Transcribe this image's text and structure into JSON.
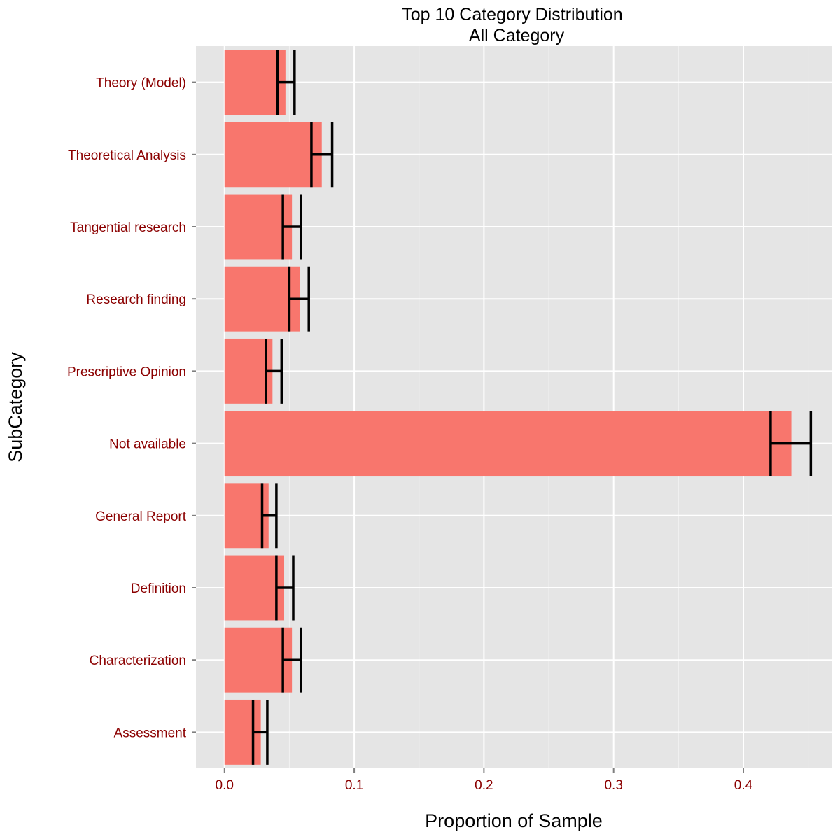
{
  "colors": {
    "panel": "#e5e5e5",
    "grid_major": "#ffffff",
    "grid_minor": "#f2f2f2",
    "bar": "#f8766d",
    "errorbar": "#000000",
    "tick_label": "#8b0000",
    "tick_mark": "#7f7f7f"
  },
  "chart_data": {
    "type": "bar",
    "orientation": "horizontal",
    "title": "Top 10 Category Distribution",
    "subtitle": "All Category",
    "xlabel": "Proportion of Sample",
    "ylabel": "SubCategory",
    "xlim": [
      -0.022,
      0.468
    ],
    "xticks": [
      0.0,
      0.1,
      0.2,
      0.3,
      0.4
    ],
    "xtick_labels": [
      "0.0",
      "0.1",
      "0.2",
      "0.3",
      "0.4"
    ],
    "grid": true,
    "legend": "none",
    "categories": [
      "Theory (Model)",
      "Theoretical Analysis",
      "Tangential research",
      "Research finding",
      "Prescriptive Opinion",
      "Not available",
      "General Report",
      "Definition",
      "Characterization",
      "Assessment"
    ],
    "values": [
      0.047,
      0.075,
      0.052,
      0.058,
      0.037,
      0.437,
      0.034,
      0.046,
      0.052,
      0.028
    ],
    "error_low": [
      0.041,
      0.067,
      0.045,
      0.05,
      0.032,
      0.421,
      0.029,
      0.04,
      0.045,
      0.022
    ],
    "error_high": [
      0.054,
      0.083,
      0.059,
      0.065,
      0.044,
      0.452,
      0.04,
      0.053,
      0.059,
      0.033
    ]
  }
}
